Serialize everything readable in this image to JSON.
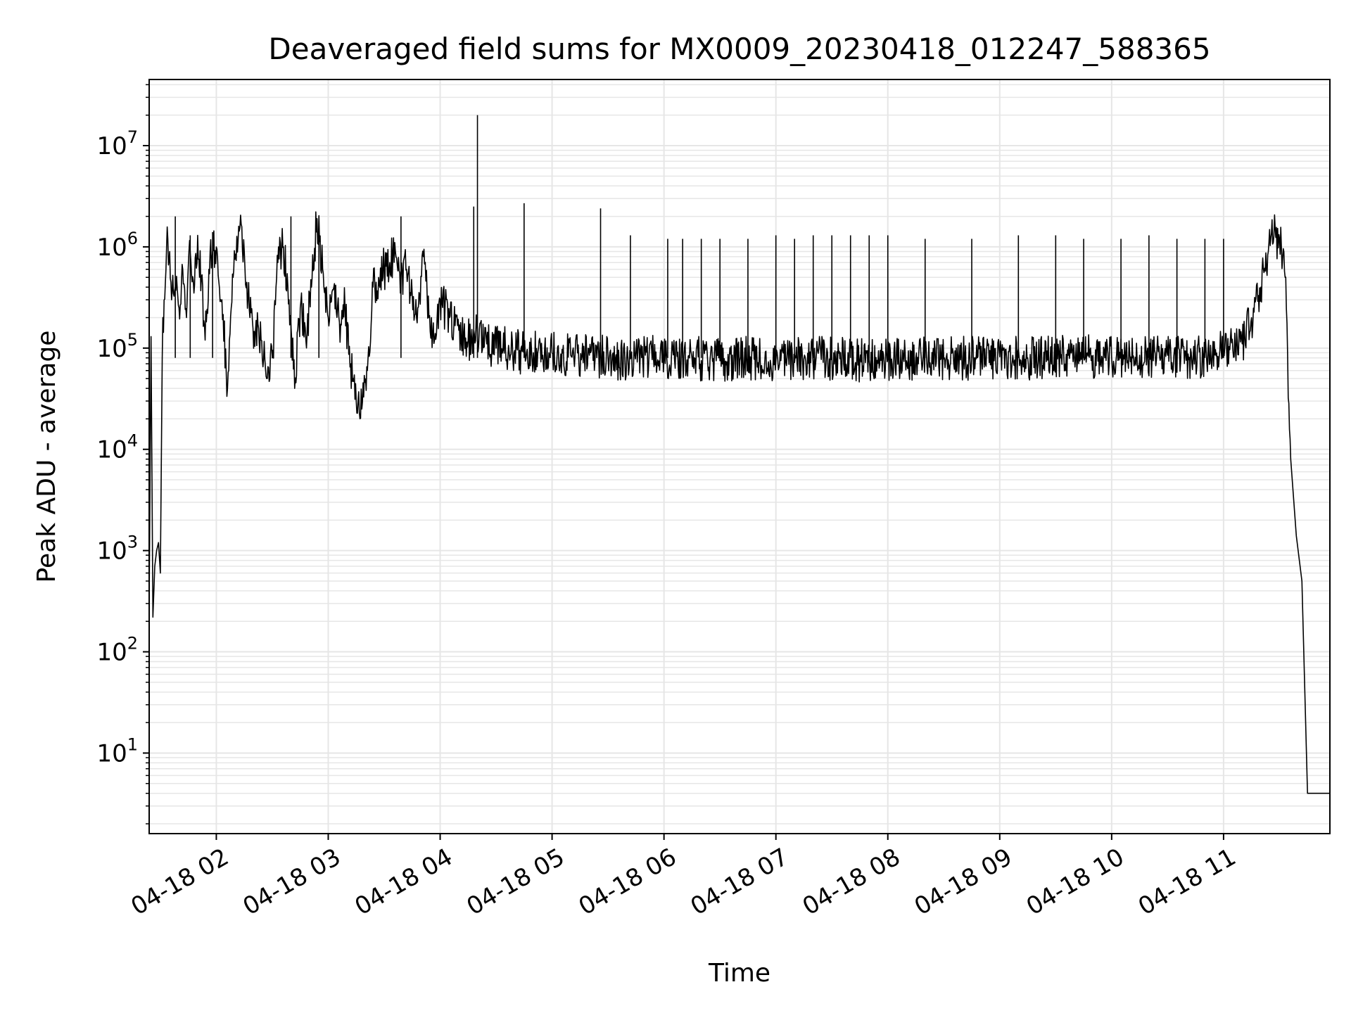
{
  "chart_data": {
    "type": "line",
    "title": "Deaveraged field sums for MX0009_20230418_012247_588365",
    "xlabel": "Time",
    "ylabel": "Peak ADU - average",
    "yscale": "log",
    "xlim": [
      "04-18 01:24",
      "04-18 11:57"
    ],
    "ylim": [
      1.6,
      45000000
    ],
    "grid": true,
    "line_color": "#000000",
    "grid_color": "#e6e6e6",
    "x_ticks": [
      {
        "time": "04-18 02:00",
        "label": "04-18 02"
      },
      {
        "time": "04-18 03:00",
        "label": "04-18 03"
      },
      {
        "time": "04-18 04:00",
        "label": "04-18 04"
      },
      {
        "time": "04-18 05:00",
        "label": "04-18 05"
      },
      {
        "time": "04-18 06:00",
        "label": "04-18 06"
      },
      {
        "time": "04-18 07:00",
        "label": "04-18 07"
      },
      {
        "time": "04-18 08:00",
        "label": "04-18 08"
      },
      {
        "time": "04-18 09:00",
        "label": "04-18 09"
      },
      {
        "time": "04-18 10:00",
        "label": "04-18 10"
      },
      {
        "time": "04-18 11:00",
        "label": "04-18 11"
      }
    ],
    "y_ticks": [
      {
        "value": 10,
        "base": "10",
        "exp": "1"
      },
      {
        "value": 100,
        "base": "10",
        "exp": "2"
      },
      {
        "value": 1000,
        "base": "10",
        "exp": "3"
      },
      {
        "value": 10000,
        "base": "10",
        "exp": "4"
      },
      {
        "value": 100000,
        "base": "10",
        "exp": "5"
      },
      {
        "value": 1000000,
        "base": "10",
        "exp": "6"
      },
      {
        "value": 10000000,
        "base": "10",
        "exp": "7"
      }
    ],
    "series": [
      {
        "x": [
          "04-18 01:24",
          "04-18 01:25",
          "04-18 01:26",
          "04-18 01:27",
          "04-18 01:28",
          "04-18 01:29",
          "04-18 01:30",
          "04-18 01:31",
          "04-18 01:32",
          "04-18 01:33",
          "04-18 01:34",
          "04-18 01:35",
          "04-18 01:36",
          "04-18 01:38",
          "04-18 01:40",
          "04-18 01:42",
          "04-18 01:44",
          "04-18 01:46",
          "04-18 01:48",
          "04-18 01:50",
          "04-18 01:52",
          "04-18 01:54",
          "04-18 01:56",
          "04-18 01:58",
          "04-18 02:00",
          "04-18 02:03",
          "04-18 02:06",
          "04-18 02:09",
          "04-18 02:12",
          "04-18 02:15",
          "04-18 02:18",
          "04-18 02:21",
          "04-18 02:24",
          "04-18 02:27",
          "04-18 02:30",
          "04-18 02:33",
          "04-18 02:36",
          "04-18 02:39",
          "04-18 02:42",
          "04-18 02:45",
          "04-18 02:48",
          "04-18 02:51",
          "04-18 02:54",
          "04-18 02:57",
          "04-18 03:00",
          "04-18 03:03",
          "04-18 03:06",
          "04-18 03:09",
          "04-18 03:12",
          "04-18 03:15",
          "04-18 03:18",
          "04-18 03:21",
          "04-18 03:24",
          "04-18 03:27",
          "04-18 03:30",
          "04-18 03:33",
          "04-18 03:36",
          "04-18 03:39",
          "04-18 03:42",
          "04-18 03:45",
          "04-18 03:48",
          "04-18 03:51",
          "04-18 03:54",
          "04-18 03:57",
          "04-18 04:00",
          "04-18 04:05",
          "04-18 04:10",
          "04-18 04:15",
          "04-18 04:20",
          "04-18 04:25",
          "04-18 04:30",
          "04-18 04:35",
          "04-18 04:40",
          "04-18 04:45",
          "04-18 04:50",
          "04-18 04:55",
          "04-18 05:00",
          "04-18 05:10",
          "04-18 05:20",
          "04-18 05:30",
          "04-18 05:40",
          "04-18 05:50",
          "04-18 06:00",
          "04-18 06:15",
          "04-18 06:30",
          "04-18 06:45",
          "04-18 07:00",
          "04-18 07:15",
          "04-18 07:30",
          "04-18 07:45",
          "04-18 08:00",
          "04-18 08:15",
          "04-18 08:30",
          "04-18 08:45",
          "04-18 09:00",
          "04-18 09:15",
          "04-18 09:30",
          "04-18 09:45",
          "04-18 10:00",
          "04-18 10:15",
          "04-18 10:30",
          "04-18 10:45",
          "04-18 11:00",
          "04-18 11:05",
          "04-18 11:10",
          "04-18 11:15",
          "04-18 11:20",
          "04-18 11:24",
          "04-18 11:27",
          "04-18 11:30",
          "04-18 11:33",
          "04-18 11:36",
          "04-18 11:39",
          "04-18 11:42",
          "04-18 11:45",
          "04-18 11:48",
          "04-18 11:51",
          "04-18 11:54",
          "04-18 11:57"
        ],
        "y": [
          300,
          130000,
          220,
          700,
          1000,
          1200,
          600,
          80000,
          300000,
          600000,
          1200000,
          900000,
          300000,
          400000,
          250000,
          600000,
          200000,
          900000,
          350000,
          1300000,
          500000,
          120000,
          600000,
          900000,
          1000000,
          300000,
          40000,
          500000,
          1600000,
          900000,
          200000,
          150000,
          120000,
          50000,
          80000,
          700000,
          1000000,
          300000,
          40000,
          250000,
          120000,
          400000,
          1900000,
          600000,
          200000,
          400000,
          180000,
          250000,
          70000,
          30000,
          25000,
          60000,
          400000,
          500000,
          600000,
          700000,
          900000,
          500000,
          600000,
          350000,
          250000,
          800000,
          200000,
          120000,
          300000,
          200000,
          150000,
          120000,
          130000,
          110000,
          100000,
          100000,
          95000,
          90000,
          90000,
          85000,
          90000,
          85000,
          85000,
          80000,
          80000,
          85000,
          75000,
          80000,
          75000,
          80000,
          75000,
          78000,
          80000,
          75000,
          78000,
          80000,
          78000,
          80000,
          82000,
          80000,
          85000,
          82000,
          80000,
          85000,
          85000,
          80000,
          90000,
          95000,
          110000,
          200000,
          400000,
          900000,
          1300000,
          1200000,
          500000,
          8000,
          1400,
          500,
          4,
          4,
          4,
          4,
          4
        ]
      }
    ],
    "spikes": {
      "x": [
        "04-18 01:38",
        "04-18 01:46",
        "04-18 01:58",
        "04-18 02:40",
        "04-18 02:55",
        "04-18 03:39",
        "04-18 04:18",
        "04-18 04:20",
        "04-18 04:45",
        "04-18 05:26",
        "04-18 05:42",
        "04-18 06:02",
        "04-18 06:10",
        "04-18 06:20",
        "04-18 06:30",
        "04-18 06:45",
        "04-18 07:00",
        "04-18 07:10",
        "04-18 07:20",
        "04-18 07:30",
        "04-18 07:40",
        "04-18 07:50",
        "04-18 08:00",
        "04-18 08:20",
        "04-18 08:45",
        "04-18 09:10",
        "04-18 09:30",
        "04-18 09:45",
        "04-18 10:05",
        "04-18 10:20",
        "04-18 10:35",
        "04-18 10:50",
        "04-18 11:00"
      ],
      "y": [
        2000000,
        1300000,
        1400000,
        2000000,
        1800000,
        2000000,
        2500000,
        20000000,
        2700000,
        2400000,
        1300000,
        1200000,
        1200000,
        1200000,
        1200000,
        1200000,
        1300000,
        1200000,
        1300000,
        1300000,
        1300000,
        1300000,
        1300000,
        1200000,
        1200000,
        1300000,
        1300000,
        1200000,
        1200000,
        1300000,
        1200000,
        1200000,
        1200000
      ]
    }
  }
}
